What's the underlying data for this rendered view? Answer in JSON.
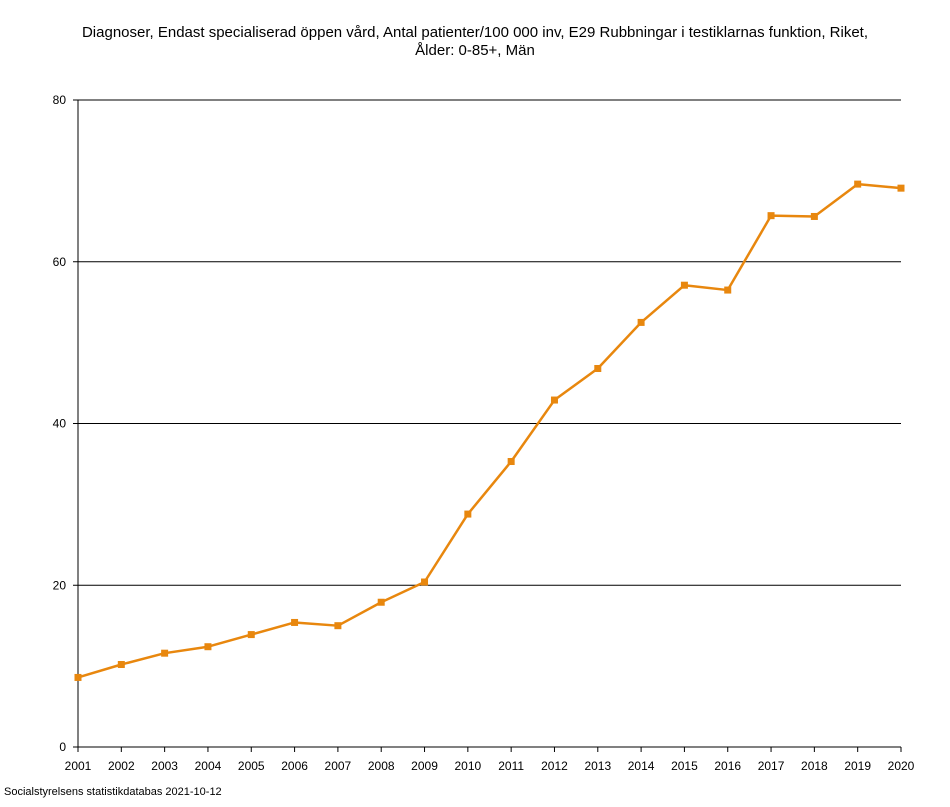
{
  "title_line1": "Diagnoser, Endast specialiserad öppen vård, Antal patienter/100 000 inv, E29 Rubbningar i testiklarnas funktion, Riket,",
  "title_line2": "Ålder: 0-85+, Män",
  "footer": "Socialstyrelsens statistikdatabas 2021-10-12",
  "colors": {
    "series": "#e8870e",
    "grid": "#000000",
    "axis": "#000000"
  },
  "chart_data": {
    "type": "line",
    "title": "Diagnoser, Endast specialiserad öppen vård, Antal patienter/100 000 inv, E29 Rubbningar i testiklarnas funktion, Riket, Ålder: 0-85+, Män",
    "xlabel": "",
    "ylabel": "",
    "categories": [
      "2001",
      "2002",
      "2003",
      "2004",
      "2005",
      "2006",
      "2007",
      "2008",
      "2009",
      "2010",
      "2011",
      "2012",
      "2013",
      "2014",
      "2015",
      "2016",
      "2017",
      "2018",
      "2019",
      "2020"
    ],
    "series": [
      {
        "values": [
          8.6,
          10.2,
          11.6,
          12.4,
          13.9,
          15.4,
          15.0,
          17.9,
          20.4,
          28.8,
          35.3,
          42.9,
          46.8,
          52.5,
          57.1,
          56.5,
          65.7,
          65.6,
          69.6,
          69.1
        ]
      }
    ],
    "ylim": [
      0,
      80
    ],
    "yticks": [
      0,
      20,
      40,
      60,
      80
    ],
    "grid": true,
    "legend": "none"
  }
}
